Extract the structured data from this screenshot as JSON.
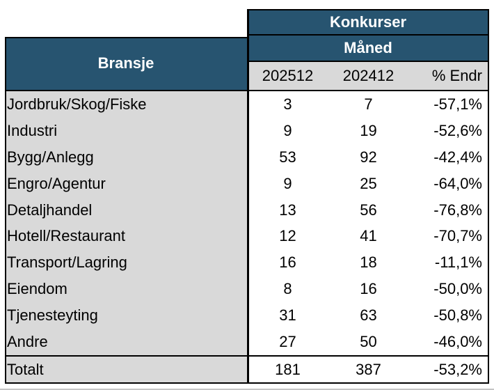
{
  "chart_data": {
    "type": "table",
    "title": "Konkurser",
    "period_header": "Måned",
    "row_label_header": "Bransje",
    "columns": [
      "202512",
      "202412",
      "% Endr"
    ],
    "rows": [
      {
        "label": "Jordbruk/Skog/Fiske",
        "values": [
          "3",
          "7",
          "-57,1%"
        ]
      },
      {
        "label": "Industri",
        "values": [
          "9",
          "19",
          "-52,6%"
        ]
      },
      {
        "label": "Bygg/Anlegg",
        "values": [
          "53",
          "92",
          "-42,4%"
        ]
      },
      {
        "label": "Engro/Agentur",
        "values": [
          "9",
          "25",
          "-64,0%"
        ]
      },
      {
        "label": "Detaljhandel",
        "values": [
          "13",
          "56",
          "-76,8%"
        ]
      },
      {
        "label": "Hotell/Restaurant",
        "values": [
          "12",
          "41",
          "-70,7%"
        ]
      },
      {
        "label": "Transport/Lagring",
        "values": [
          "16",
          "18",
          "-11,1%"
        ]
      },
      {
        "label": "Eiendom",
        "values": [
          "8",
          "16",
          "-50,0%"
        ]
      },
      {
        "label": "Tjenesteyting",
        "values": [
          "31",
          "63",
          "-50,8%"
        ]
      },
      {
        "label": "Andre",
        "values": [
          "27",
          "50",
          "-46,0%"
        ]
      }
    ],
    "total_row": {
      "label": "Totalt",
      "values": [
        "181",
        "387",
        "-53,2%"
      ]
    },
    "layout_hints": {
      "grid": "off",
      "value_columns_align": "center",
      "percent_column_align": "right"
    }
  },
  "colors": {
    "header_blue": "#275470",
    "row_gray": "#D9D9D9",
    "border_black": "#000000",
    "hairline_gray": "#C4C4C4"
  }
}
